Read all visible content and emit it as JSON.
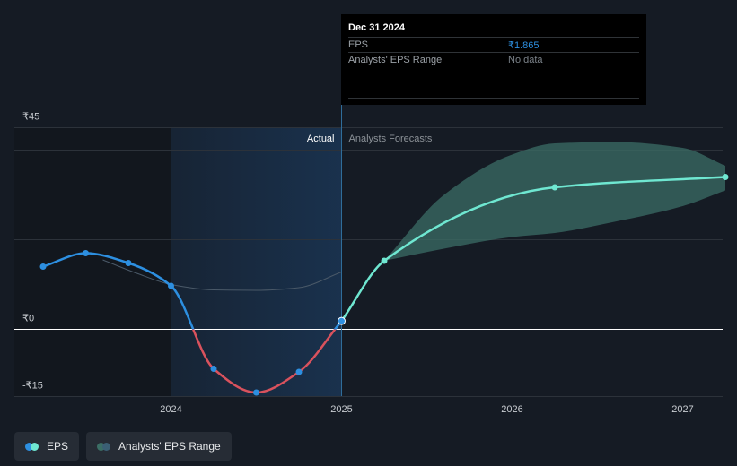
{
  "chart_data": {
    "type": "line",
    "y_ticks": [
      {
        "value": 45,
        "label": "₹45"
      },
      {
        "value": 0,
        "label": "₹0"
      },
      {
        "value": -15,
        "label": "-₹15"
      }
    ],
    "x_ticks": [
      {
        "value": 2024.0,
        "label": "2024"
      },
      {
        "value": 2025.0,
        "label": "2025"
      },
      {
        "value": 2026.0,
        "label": "2026"
      },
      {
        "value": 2027.0,
        "label": "2027"
      }
    ],
    "xlim": [
      2023.0,
      2027.25
    ],
    "ylim": [
      -15,
      45
    ],
    "section_labels": {
      "actual": "Actual",
      "forecast": "Analysts Forecasts"
    },
    "series": [
      {
        "name": "EPS",
        "kind": "actual",
        "points": [
          {
            "x": 2023.25,
            "y": 14.0
          },
          {
            "x": 2023.5,
            "y": 17.0
          },
          {
            "x": 2023.75,
            "y": 14.8
          },
          {
            "x": 2024.0,
            "y": 9.7
          },
          {
            "x": 2024.25,
            "y": -8.8
          },
          {
            "x": 2024.5,
            "y": -14.1
          },
          {
            "x": 2024.75,
            "y": -9.5
          },
          {
            "x": 2025.0,
            "y": 1.865
          }
        ]
      },
      {
        "name": "EPS",
        "kind": "forecast",
        "points": [
          {
            "x": 2025.0,
            "y": 1.865
          },
          {
            "x": 2025.25,
            "y": 15.3
          },
          {
            "x": 2026.25,
            "y": 31.7
          },
          {
            "x": 2027.25,
            "y": 34.0
          }
        ]
      }
    ],
    "analyst_range": {
      "x": [
        2025.25,
        2025.6,
        2026.0,
        2026.25,
        2026.6,
        2027.0,
        2027.25
      ],
      "low": [
        15.3,
        18.0,
        20.6,
        21.5,
        24.0,
        27.5,
        31.0
      ],
      "high": [
        15.3,
        30.0,
        39.0,
        41.5,
        41.8,
        40.5,
        36.5
      ]
    },
    "past_estimate": {
      "x": [
        2023.6,
        2023.8,
        2024.0,
        2024.25,
        2024.5,
        2024.75,
        2025.0
      ],
      "y": [
        15.5,
        12.5,
        10.0,
        8.8,
        8.7,
        9.3,
        12.8
      ]
    },
    "colors": {
      "eps_positive": "#2d8fe0",
      "eps_negative": "#d9525d",
      "forecast_line": "#6fe7d1",
      "range_fill": "#3b6e65",
      "gridline": "#2c323a",
      "zero_line": "#ffffff",
      "actual_band": "#1a3452",
      "past_estimate": "#4a5968"
    }
  },
  "tooltip": {
    "date": "Dec 31 2024",
    "rows": [
      {
        "label": "EPS",
        "value": "₹1.865",
        "color": "#2d8fe0"
      },
      {
        "label": "Analysts' EPS Range",
        "value": "No data",
        "color": "#7a8188"
      }
    ]
  },
  "legend": [
    {
      "label": "EPS",
      "colors": [
        "#2d8fe0",
        "#6fe7d1"
      ]
    },
    {
      "label": "Analysts' EPS Range",
      "colors": [
        "#3b6e65",
        "#3b5f74"
      ]
    }
  ]
}
